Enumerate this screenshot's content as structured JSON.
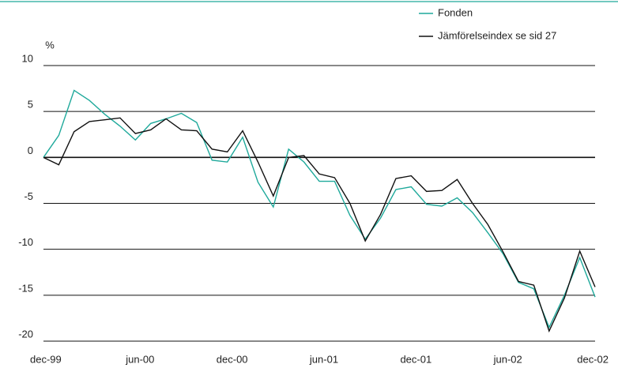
{
  "chart_data": {
    "type": "line",
    "y_axis_label": "%",
    "categories": [
      "dec-99",
      null,
      null,
      null,
      null,
      null,
      "jun-00",
      null,
      null,
      null,
      null,
      null,
      "dec-00",
      null,
      null,
      null,
      null,
      null,
      "jun-01",
      null,
      null,
      null,
      null,
      null,
      "dec-01",
      null,
      null,
      null,
      null,
      null,
      "jun-02",
      null,
      null,
      null,
      null,
      null,
      "dec-02"
    ],
    "series": [
      {
        "name": "Fonden",
        "color": "#1fa99b",
        "values": [
          0,
          2.4,
          7.3,
          6.2,
          4.7,
          3.4,
          1.9,
          3.7,
          4.2,
          4.8,
          3.8,
          -0.3,
          -0.5,
          2.2,
          -2.7,
          -5.4,
          0.9,
          -0.5,
          -2.6,
          -2.6,
          -6.3,
          -8.9,
          -6.6,
          -3.5,
          -3.2,
          -5.1,
          -5.3,
          -4.4,
          -6.0,
          -8.2,
          -10.5,
          -13.6,
          -14.3,
          -18.5,
          -15.0,
          -10.9,
          -15.2
        ]
      },
      {
        "name": "Jämförelseindex se sid 27",
        "color": "#111111",
        "values": [
          0,
          -0.8,
          2.8,
          3.9,
          4.1,
          4.3,
          2.6,
          3.0,
          4.2,
          3.0,
          2.9,
          0.9,
          0.6,
          2.9,
          -0.5,
          -4.2,
          0.0,
          0.2,
          -1.8,
          -2.2,
          -5.0,
          -9.1,
          -6.2,
          -2.3,
          -2.0,
          -3.7,
          -3.6,
          -2.4,
          -5.0,
          -7.3,
          -10.3,
          -13.5,
          -13.9,
          -18.9,
          -15.3,
          -10.2,
          -14.1
        ]
      }
    ],
    "ylim": [
      -20,
      10
    ],
    "yticks": [
      -20,
      -15,
      -10,
      -5,
      0,
      5,
      10
    ],
    "grid": true,
    "legend": "top-right"
  }
}
